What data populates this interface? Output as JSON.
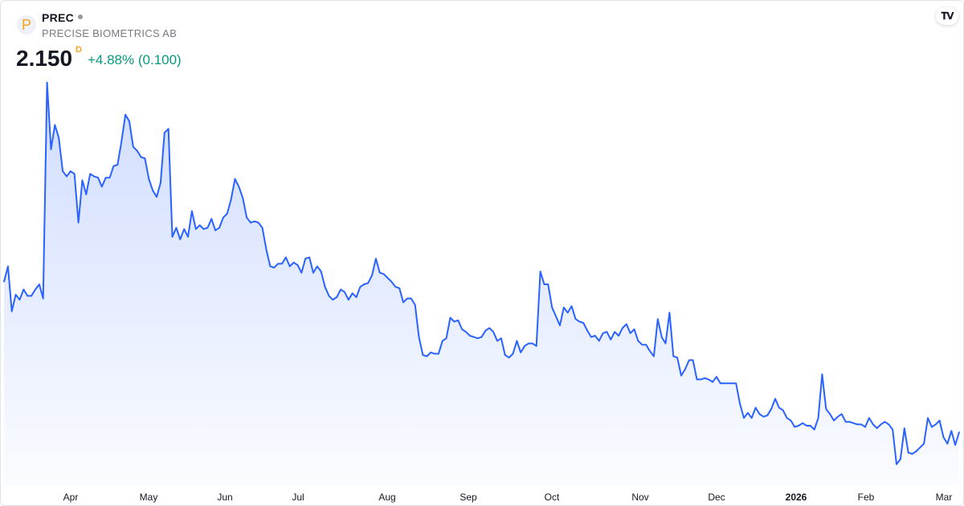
{
  "header": {
    "logo_letter": "P",
    "ticker": "PREC",
    "company": "PRECISE BIOMETRICS AB",
    "price": "2.150",
    "interval": "D",
    "change": "+4.88% (0.100)",
    "brand_logo_text": "TV"
  },
  "colors": {
    "line": "#2962ff",
    "positive": "#089981",
    "interval": "#f7a21b"
  },
  "chart_data": {
    "type": "area",
    "title": "",
    "xlabel": "",
    "ylabel": "",
    "grid": false,
    "x_tick_labels": [
      {
        "label": "Apr",
        "bold": false
      },
      {
        "label": "May",
        "bold": false
      },
      {
        "label": "Jun",
        "bold": false
      },
      {
        "label": "Jul",
        "bold": false
      },
      {
        "label": "Aug",
        "bold": false
      },
      {
        "label": "Sep",
        "bold": false
      },
      {
        "label": "Oct",
        "bold": false
      },
      {
        "label": "Nov",
        "bold": false
      },
      {
        "label": "Dec",
        "bold": false
      },
      {
        "label": "2026",
        "bold": true
      },
      {
        "label": "Feb",
        "bold": false
      },
      {
        "label": "Mar",
        "bold": false
      }
    ],
    "series": [
      {
        "values": [
          3.32,
          3.44,
          3.09,
          3.22,
          3.18,
          3.26,
          3.21,
          3.21,
          3.26,
          3.3,
          3.19,
          4.87,
          4.35,
          4.54,
          4.44,
          4.18,
          4.14,
          4.18,
          4.16,
          3.78,
          4.11,
          4.0,
          4.16,
          4.14,
          4.13,
          4.06,
          4.13,
          4.13,
          4.22,
          4.23,
          4.41,
          4.62,
          4.57,
          4.37,
          4.34,
          4.29,
          4.28,
          4.12,
          4.03,
          3.98,
          4.09,
          4.48,
          4.51,
          3.67,
          3.74,
          3.65,
          3.73,
          3.67,
          3.87,
          3.73,
          3.76,
          3.73,
          3.74,
          3.81,
          3.72,
          3.74,
          3.82,
          3.85,
          3.96,
          4.12,
          4.06,
          3.97,
          3.82,
          3.78,
          3.79,
          3.78,
          3.74,
          3.57,
          3.44,
          3.43,
          3.46,
          3.46,
          3.51,
          3.44,
          3.47,
          3.45,
          3.39,
          3.5,
          3.51,
          3.39,
          3.44,
          3.4,
          3.28,
          3.21,
          3.18,
          3.2,
          3.26,
          3.24,
          3.18,
          3.23,
          3.2,
          3.28,
          3.3,
          3.31,
          3.37,
          3.5,
          3.39,
          3.38,
          3.35,
          3.32,
          3.28,
          3.27,
          3.16,
          3.19,
          3.19,
          3.14,
          2.89,
          2.75,
          2.74,
          2.77,
          2.76,
          2.76,
          2.86,
          2.88,
          3.04,
          3.01,
          3.02,
          2.95,
          2.93,
          2.9,
          2.89,
          2.88,
          2.89,
          2.94,
          2.96,
          2.93,
          2.86,
          2.88,
          2.75,
          2.73,
          2.76,
          2.86,
          2.77,
          2.82,
          2.84,
          2.84,
          2.82,
          3.4,
          3.3,
          3.3,
          3.12,
          3.05,
          2.98,
          3.12,
          3.08,
          3.13,
          3.03,
          3.01,
          3.0,
          2.94,
          2.89,
          2.9,
          2.86,
          2.92,
          2.93,
          2.87,
          2.93,
          2.9,
          2.96,
          2.99,
          2.92,
          2.95,
          2.86,
          2.83,
          2.83,
          2.78,
          2.74,
          3.03,
          2.89,
          2.84,
          3.08,
          2.74,
          2.73,
          2.59,
          2.64,
          2.71,
          2.71,
          2.56,
          2.56,
          2.57,
          2.56,
          2.54,
          2.58,
          2.53,
          2.53,
          2.53,
          2.53,
          2.53,
          2.37,
          2.26,
          2.3,
          2.26,
          2.34,
          2.29,
          2.27,
          2.28,
          2.33,
          2.41,
          2.34,
          2.32,
          2.26,
          2.24,
          2.19,
          2.2,
          2.22,
          2.2,
          2.2,
          2.17,
          2.26,
          2.6,
          2.33,
          2.29,
          2.24,
          2.27,
          2.29,
          2.23,
          2.23,
          2.22,
          2.21,
          2.21,
          2.19,
          2.26,
          2.21,
          2.18,
          2.21,
          2.23,
          2.21,
          2.17,
          1.9,
          1.94,
          2.18,
          1.99,
          1.98,
          2.0,
          2.03,
          2.06,
          2.26,
          2.19,
          2.21,
          2.24,
          2.11,
          2.06,
          2.16,
          2.05,
          2.15
        ]
      }
    ]
  }
}
